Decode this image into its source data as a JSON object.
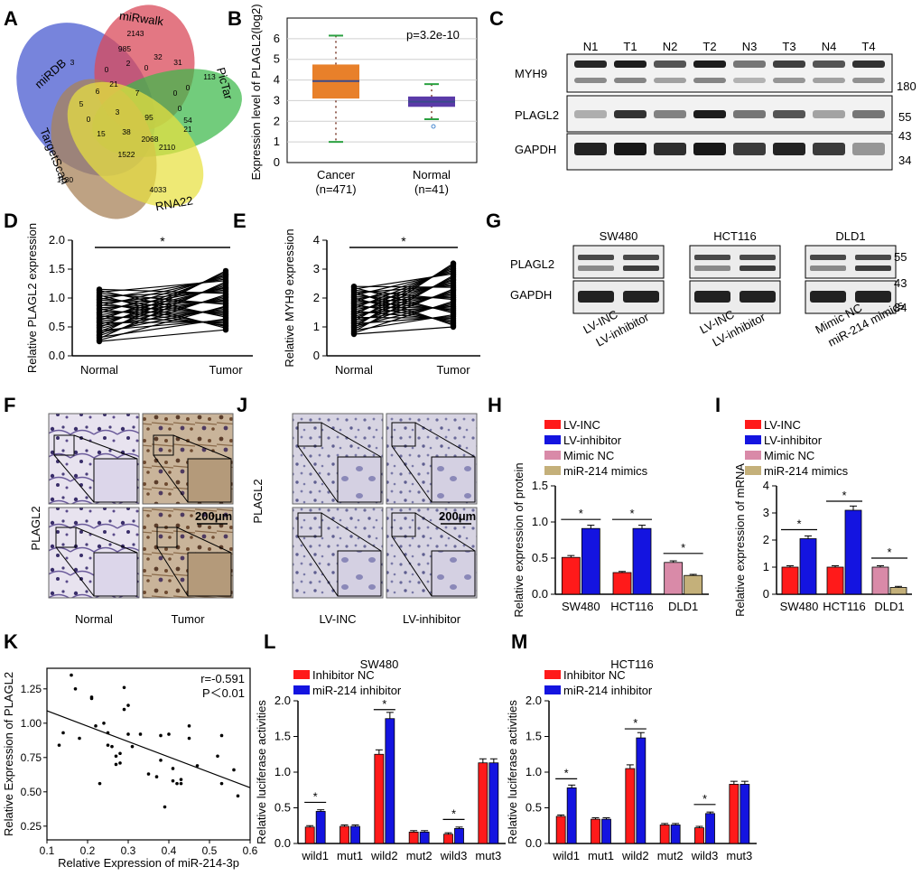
{
  "panel_letters": [
    "A",
    "B",
    "C",
    "D",
    "E",
    "F",
    "G",
    "H",
    "I",
    "J",
    "K",
    "L",
    "M"
  ],
  "venn": {
    "sets": [
      "miRDB",
      "miRwalk",
      "PicTar",
      "TargetScan",
      "RNA22"
    ],
    "counts": [
      "2143",
      "3",
      "113",
      "1130",
      "4033",
      "985",
      "32",
      "31",
      "0",
      "2",
      "0",
      "21",
      "7",
      "0",
      "0",
      "6",
      "3",
      "95",
      "0",
      "5",
      "15",
      "38",
      "2068",
      "2110",
      "21",
      "1522",
      "0",
      "54"
    ],
    "colors": {
      "miRDB": "#4a5bd0",
      "miRwalk": "#d94a5a",
      "PicTar": "#3cb84a",
      "TargetScan": "#a8835a",
      "RNA22": "#e8e040"
    }
  },
  "boxplot": {
    "ylabel": "Expression level of PLAGL2(log2)",
    "pvalue": "p=3.2e-10",
    "yticks": [
      "0",
      "1",
      "2",
      "3",
      "4",
      "5",
      "6"
    ],
    "groups": [
      {
        "label": "Cancer",
        "n": "(n=471)",
        "min": 1.0,
        "q1": 3.1,
        "median": 3.95,
        "q3": 4.75,
        "max": 6.15,
        "color": "#e8802a"
      },
      {
        "label": "Normal",
        "n": "(n=41)",
        "min": 2.1,
        "q1": 2.7,
        "median": 2.95,
        "q3": 3.2,
        "max": 3.8,
        "color": "#5a3aa8"
      }
    ]
  },
  "blotC": {
    "lanes": [
      "N1",
      "T1",
      "N2",
      "T2",
      "N3",
      "T3",
      "N4",
      "T4"
    ],
    "rows": [
      "MYH9",
      "PLAGL2",
      "GAPDH"
    ],
    "markers": [
      "180",
      "55",
      "43",
      "34"
    ]
  },
  "pairedD": {
    "ylabel": "Relative PLAGL2 expression",
    "xlabels": [
      "Normal",
      "Tumor"
    ],
    "yticks": [
      "0.0",
      "0.5",
      "1.0",
      "1.5",
      "2.0"
    ],
    "star": "*"
  },
  "pairedE": {
    "ylabel": "Relative MYH9 expression",
    "xlabels": [
      "Normal",
      "Tumor"
    ],
    "yticks": [
      "0",
      "1",
      "2",
      "3",
      "4"
    ],
    "star": "*"
  },
  "blotG": {
    "groups": [
      {
        "cell": "SW480",
        "lanes": [
          "LV-INC",
          "LV-inhibitor"
        ]
      },
      {
        "cell": "HCT116",
        "lanes": [
          "LV-INC",
          "LV-inhibitor"
        ]
      },
      {
        "cell": "DLD1",
        "lanes": [
          "Mimic NC",
          "miR-214 mimics"
        ]
      }
    ],
    "rows": [
      "PLAGL2",
      "GAPDH"
    ],
    "markers": [
      "55",
      "43",
      "34"
    ]
  },
  "ihcF": {
    "rowlabel": "PLAGL2",
    "cols": [
      "Normal",
      "Tumor"
    ],
    "scale": "200μm"
  },
  "ihcJ": {
    "rowlabel": "PLAGL2",
    "cols": [
      "LV-INC",
      "LV-inhibitor"
    ],
    "scale": "200μm"
  },
  "barH": {
    "legend": [
      "LV-INC",
      "LV-inhibitor",
      "Mimic NC",
      "miR-214 mimics"
    ],
    "colors": [
      "#ff1a1a",
      "#1414e0",
      "#d98aa8",
      "#c4b07a"
    ],
    "ylabel": "Relative expression of protein",
    "yticks": [
      "0.0",
      "0.5",
      "1.0",
      "1.5"
    ],
    "categories": [
      "SW480",
      "HCT116",
      "DLD1"
    ],
    "values": [
      [
        0.51,
        0.91
      ],
      [
        0.3,
        0.91
      ],
      [
        0.44,
        0.26
      ]
    ],
    "star": "*"
  },
  "barI": {
    "legend": [
      "LV-INC",
      "LV-inhibitor",
      "Mimic NC",
      "miR-214 mimics"
    ],
    "colors": [
      "#ff1a1a",
      "#1414e0",
      "#d98aa8",
      "#c4b07a"
    ],
    "ylabel": "Relative expression of mRNA",
    "yticks": [
      "0",
      "1",
      "2",
      "3",
      "4"
    ],
    "categories": [
      "SW480",
      "HCT116",
      "DLD1"
    ],
    "values": [
      [
        1.0,
        2.05
      ],
      [
        1.0,
        3.1
      ],
      [
        1.0,
        0.25
      ]
    ],
    "star": "*"
  },
  "scatterK": {
    "ylabel": "Relative Expression of PLAGL2",
    "xlabel": "Relative Expression of miR-214-3p",
    "r": "r=-0.591",
    "p": "P＜0.01",
    "xticks": [
      "0.1",
      "0.2",
      "0.3",
      "0.4",
      "0.5",
      "0.6"
    ],
    "yticks": [
      "0.25",
      "0.50",
      "0.75",
      "1.00",
      "1.25"
    ],
    "points": [
      [
        0.16,
        1.35
      ],
      [
        0.17,
        1.25
      ],
      [
        0.14,
        0.93
      ],
      [
        0.13,
        0.84
      ],
      [
        0.18,
        0.89
      ],
      [
        0.21,
        1.18
      ],
      [
        0.21,
        1.19
      ],
      [
        0.22,
        0.98
      ],
      [
        0.23,
        0.56
      ],
      [
        0.24,
        1.0
      ],
      [
        0.25,
        0.93
      ],
      [
        0.25,
        0.84
      ],
      [
        0.26,
        0.83
      ],
      [
        0.27,
        0.76
      ],
      [
        0.27,
        0.7
      ],
      [
        0.28,
        0.71
      ],
      [
        0.28,
        0.78
      ],
      [
        0.29,
        1.26
      ],
      [
        0.29,
        1.1
      ],
      [
        0.3,
        1.13
      ],
      [
        0.3,
        0.92
      ],
      [
        0.31,
        0.83
      ],
      [
        0.33,
        0.92
      ],
      [
        0.35,
        0.63
      ],
      [
        0.37,
        0.61
      ],
      [
        0.38,
        0.91
      ],
      [
        0.38,
        0.73
      ],
      [
        0.39,
        0.39
      ],
      [
        0.4,
        0.92
      ],
      [
        0.41,
        0.58
      ],
      [
        0.41,
        0.67
      ],
      [
        0.42,
        0.56
      ],
      [
        0.43,
        0.59
      ],
      [
        0.43,
        0.56
      ],
      [
        0.45,
        0.98
      ],
      [
        0.45,
        0.89
      ],
      [
        0.47,
        0.69
      ],
      [
        0.52,
        0.76
      ],
      [
        0.53,
        0.91
      ],
      [
        0.53,
        0.56
      ],
      [
        0.56,
        0.66
      ],
      [
        0.57,
        0.47
      ]
    ],
    "line": {
      "x0": 0.1,
      "y0": 1.09,
      "x1": 0.6,
      "y1": 0.53
    }
  },
  "lucL": {
    "title": "SW480",
    "legend": [
      "Inhibitor NC",
      "miR-214 inhibitor"
    ],
    "colors": [
      "#ff1a1a",
      "#1414e0"
    ],
    "ylabel": "Relative luciferase activities",
    "yticks": [
      "0.0",
      "0.5",
      "1.0",
      "1.5",
      "2.0"
    ],
    "categories": [
      "wild1",
      "mut1",
      "wild2",
      "mut2",
      "wild3",
      "mut3"
    ],
    "values": [
      [
        0.23,
        0.45
      ],
      [
        0.24,
        0.24
      ],
      [
        1.25,
        1.75
      ],
      [
        0.16,
        0.16
      ],
      [
        0.13,
        0.21
      ],
      [
        1.13,
        1.13
      ]
    ],
    "stars": [
      0,
      2,
      4
    ],
    "star": "*"
  },
  "lucM": {
    "title": "HCT116",
    "legend": [
      "Inhibitor NC",
      "miR-214 inhibitor"
    ],
    "colors": [
      "#ff1a1a",
      "#1414e0"
    ],
    "ylabel": "Relative luciferase activities",
    "yticks": [
      "0.0",
      "0.5",
      "1.0",
      "1.5",
      "2.0"
    ],
    "categories": [
      "wild1",
      "mut1",
      "wild2",
      "mut2",
      "wild3",
      "mut3"
    ],
    "values": [
      [
        0.38,
        0.78
      ],
      [
        0.34,
        0.34
      ],
      [
        1.05,
        1.48
      ],
      [
        0.26,
        0.26
      ],
      [
        0.22,
        0.42
      ],
      [
        0.83,
        0.83
      ]
    ],
    "stars": [
      0,
      2,
      4
    ],
    "star": "*"
  }
}
